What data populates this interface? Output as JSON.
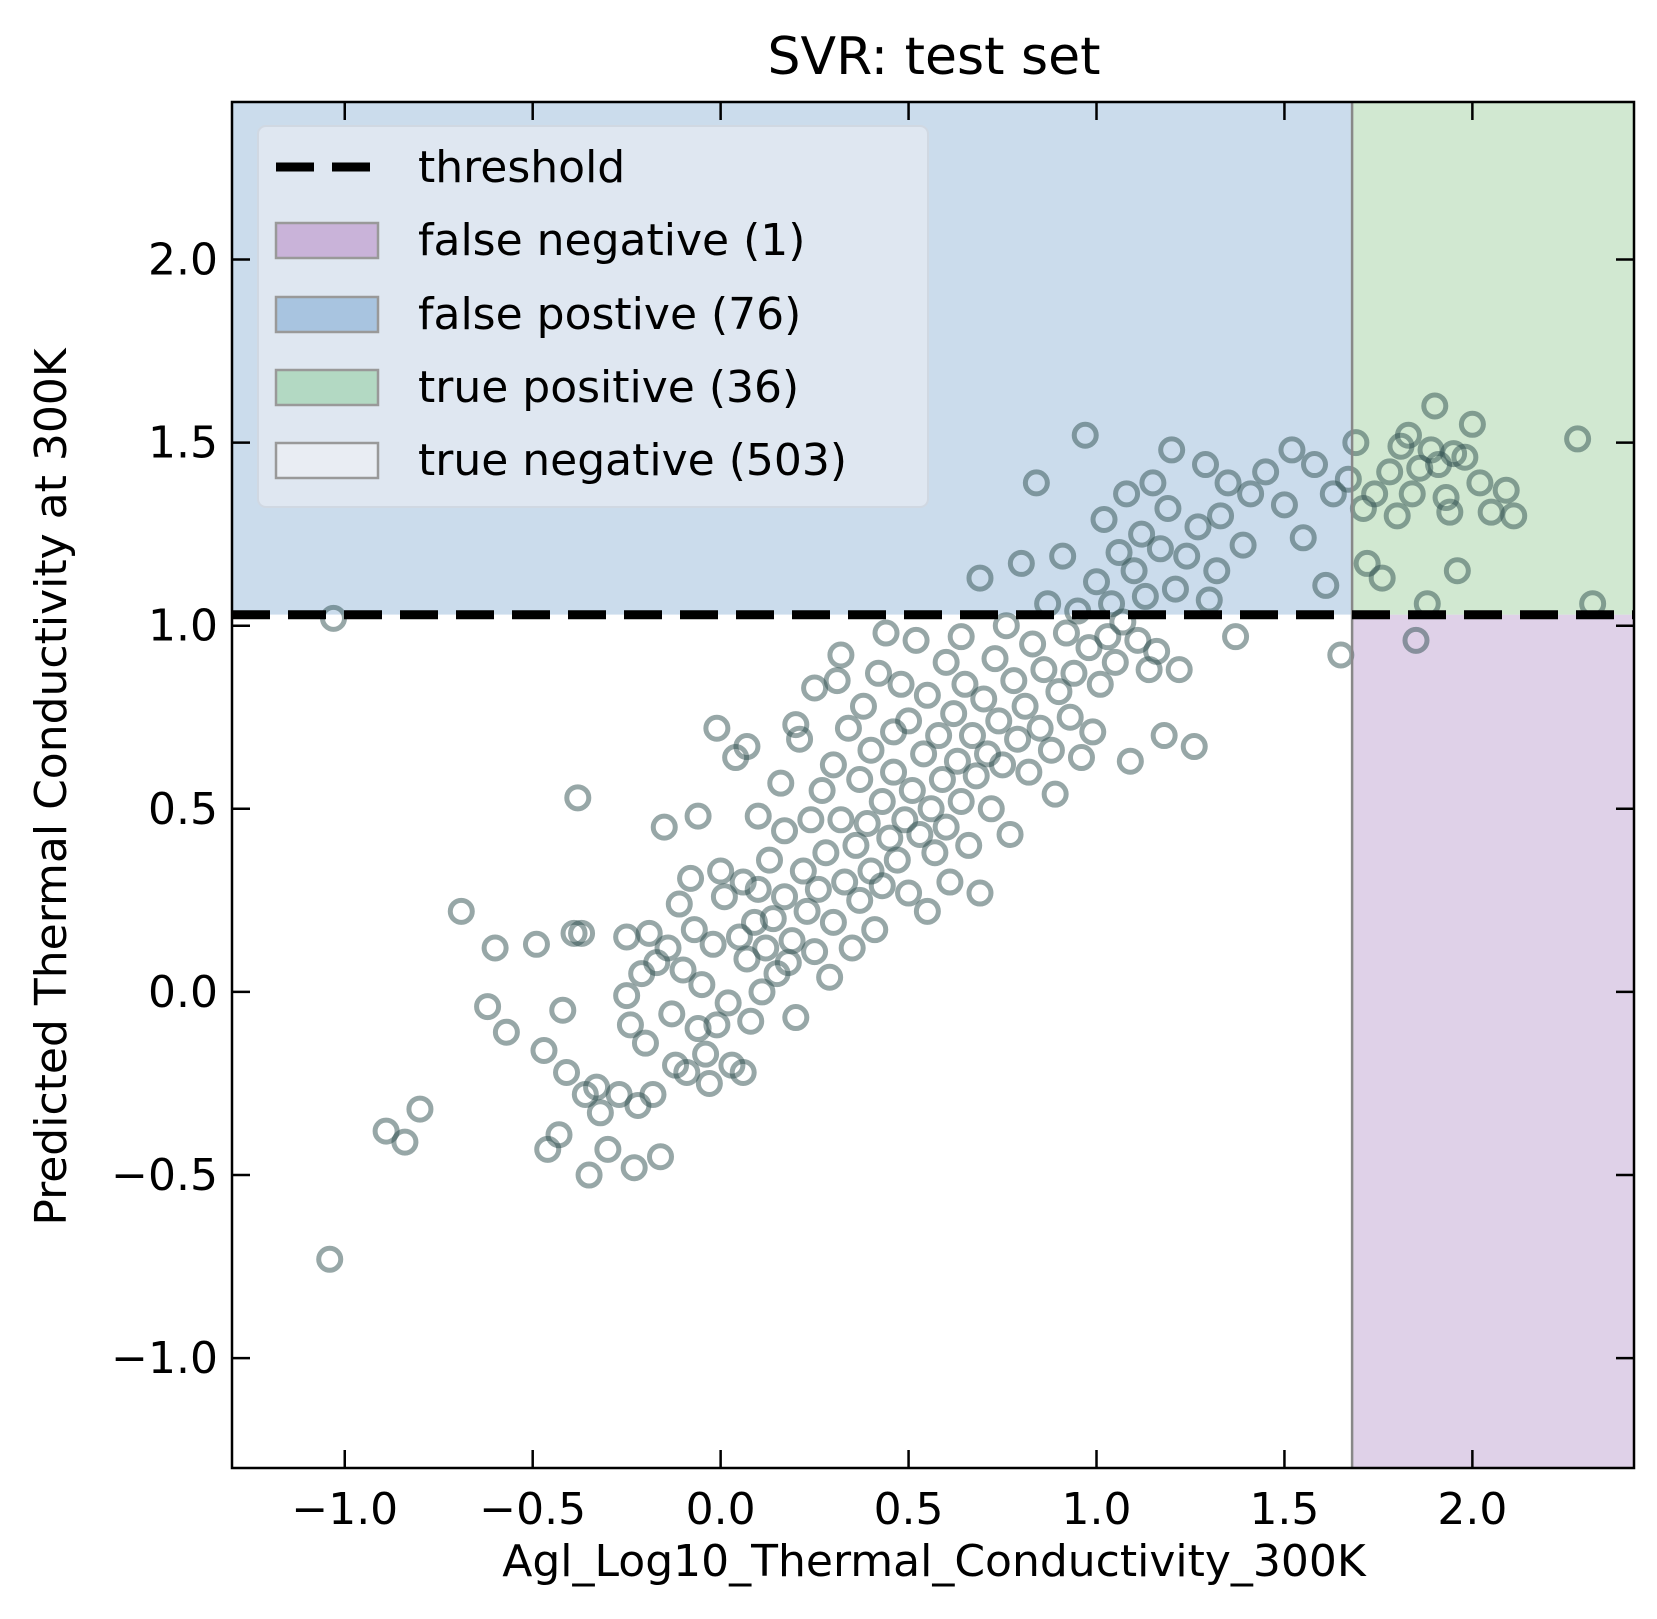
{
  "chart_data": {
    "type": "scatter",
    "title": "SVR: test set",
    "xlabel": "Agl_Log10_Thermal_Conductivity_300K",
    "ylabel": "Predicted Thermal Conductivity at 300K",
    "xlim": [
      -1.3,
      2.43
    ],
    "ylim": [
      -1.3,
      2.43
    ],
    "xticks": [
      -1.0,
      -0.5,
      0.0,
      0.5,
      1.0,
      1.5,
      2.0
    ],
    "yticks": [
      -1.0,
      -0.5,
      0.0,
      0.5,
      1.0,
      1.5,
      2.0
    ],
    "xtick_labels": [
      "−1.0",
      "−0.5",
      "0.0",
      "0.5",
      "1.0",
      "1.5",
      "2.0"
    ],
    "ytick_labels": [
      "−1.0",
      "−0.5",
      "0.0",
      "0.5",
      "1.0",
      "1.5",
      "2.0"
    ],
    "grid": false,
    "legend_position": "top-left",
    "threshold": {
      "x": 1.68,
      "y": 1.03
    },
    "regions": {
      "false_negative": {
        "label": "false negative (1)",
        "color": "#c9b3d9"
      },
      "false_positive": {
        "label": "false postive (76)",
        "color": "#a8c4e0"
      },
      "true_positive": {
        "label": "true positive (36)",
        "color": "#b3d9b3"
      },
      "true_negative": {
        "label": "true negative (503)",
        "color": "#e0e6ee"
      }
    },
    "legend": [
      {
        "label": "threshold",
        "kind": "line",
        "color": "#000000"
      },
      {
        "label": "false negative (1)",
        "kind": "patch",
        "color": "#c9b3d9"
      },
      {
        "label": "false postive (76)",
        "kind": "patch",
        "color": "#a8c4e0"
      },
      {
        "label": "true positive (36)",
        "kind": "patch",
        "color": "#b3d9b3"
      },
      {
        "label": "true negative (503)",
        "kind": "patch",
        "color": "#e0e6ee"
      }
    ],
    "marker_color": "#2f4f4f",
    "points": [
      [
        -1.04,
        -0.73
      ],
      [
        -1.03,
        1.02
      ],
      [
        -0.89,
        -0.38
      ],
      [
        -0.84,
        -0.41
      ],
      [
        -0.8,
        -0.32
      ],
      [
        -0.69,
        0.22
      ],
      [
        -0.62,
        -0.04
      ],
      [
        -0.6,
        0.12
      ],
      [
        -0.57,
        -0.11
      ],
      [
        -0.49,
        0.13
      ],
      [
        -0.47,
        -0.16
      ],
      [
        -0.46,
        -0.43
      ],
      [
        -0.43,
        -0.39
      ],
      [
        -0.42,
        -0.05
      ],
      [
        -0.41,
        -0.22
      ],
      [
        -0.39,
        0.16
      ],
      [
        -0.38,
        0.53
      ],
      [
        -0.37,
        0.16
      ],
      [
        -0.36,
        -0.28
      ],
      [
        -0.35,
        -0.5
      ],
      [
        -0.33,
        -0.26
      ],
      [
        -0.32,
        -0.33
      ],
      [
        -0.3,
        -0.43
      ],
      [
        -0.27,
        -0.28
      ],
      [
        -0.25,
        0.15
      ],
      [
        -0.25,
        -0.01
      ],
      [
        -0.24,
        -0.09
      ],
      [
        -0.23,
        -0.48
      ],
      [
        -0.22,
        -0.31
      ],
      [
        -0.21,
        0.05
      ],
      [
        -0.2,
        -0.14
      ],
      [
        -0.19,
        0.16
      ],
      [
        -0.18,
        -0.28
      ],
      [
        -0.17,
        0.08
      ],
      [
        -0.16,
        -0.45
      ],
      [
        -0.15,
        0.45
      ],
      [
        -0.14,
        0.12
      ],
      [
        -0.13,
        -0.06
      ],
      [
        -0.12,
        -0.2
      ],
      [
        -0.11,
        0.24
      ],
      [
        -0.1,
        0.06
      ],
      [
        -0.09,
        -0.22
      ],
      [
        -0.08,
        0.31
      ],
      [
        -0.07,
        0.17
      ],
      [
        -0.06,
        -0.1
      ],
      [
        -0.06,
        0.48
      ],
      [
        -0.05,
        0.02
      ],
      [
        -0.04,
        -0.17
      ],
      [
        -0.03,
        -0.25
      ],
      [
        -0.02,
        0.13
      ],
      [
        -0.01,
        -0.09
      ],
      [
        -0.01,
        0.72
      ],
      [
        0.0,
        0.33
      ],
      [
        0.01,
        0.26
      ],
      [
        0.02,
        -0.03
      ],
      [
        0.03,
        -0.2
      ],
      [
        0.04,
        0.64
      ],
      [
        0.05,
        0.15
      ],
      [
        0.06,
        0.3
      ],
      [
        0.06,
        -0.22
      ],
      [
        0.07,
        0.09
      ],
      [
        0.07,
        0.67
      ],
      [
        0.08,
        -0.08
      ],
      [
        0.09,
        0.19
      ],
      [
        0.1,
        0.48
      ],
      [
        0.1,
        0.28
      ],
      [
        0.11,
        0.0
      ],
      [
        0.12,
        0.12
      ],
      [
        0.13,
        0.36
      ],
      [
        0.14,
        0.2
      ],
      [
        0.15,
        0.05
      ],
      [
        0.16,
        0.57
      ],
      [
        0.17,
        0.44
      ],
      [
        0.17,
        0.26
      ],
      [
        0.18,
        0.08
      ],
      [
        0.19,
        0.14
      ],
      [
        0.2,
        -0.07
      ],
      [
        0.2,
        0.73
      ],
      [
        0.21,
        0.69
      ],
      [
        0.22,
        0.33
      ],
      [
        0.23,
        0.22
      ],
      [
        0.24,
        0.47
      ],
      [
        0.25,
        0.11
      ],
      [
        0.25,
        0.83
      ],
      [
        0.26,
        0.28
      ],
      [
        0.27,
        0.55
      ],
      [
        0.28,
        0.38
      ],
      [
        0.29,
        0.04
      ],
      [
        0.3,
        0.19
      ],
      [
        0.3,
        0.62
      ],
      [
        0.31,
        0.85
      ],
      [
        0.32,
        0.47
      ],
      [
        0.32,
        0.92
      ],
      [
        0.33,
        0.3
      ],
      [
        0.34,
        0.72
      ],
      [
        0.35,
        0.12
      ],
      [
        0.36,
        0.4
      ],
      [
        0.37,
        0.25
      ],
      [
        0.37,
        0.58
      ],
      [
        0.38,
        0.78
      ],
      [
        0.39,
        0.46
      ],
      [
        0.4,
        0.33
      ],
      [
        0.4,
        0.66
      ],
      [
        0.41,
        0.17
      ],
      [
        0.42,
        0.87
      ],
      [
        0.43,
        0.52
      ],
      [
        0.43,
        0.29
      ],
      [
        0.44,
        0.98
      ],
      [
        0.45,
        0.42
      ],
      [
        0.46,
        0.71
      ],
      [
        0.46,
        0.6
      ],
      [
        0.47,
        0.36
      ],
      [
        0.48,
        0.84
      ],
      [
        0.49,
        0.47
      ],
      [
        0.5,
        0.27
      ],
      [
        0.5,
        0.74
      ],
      [
        0.51,
        0.55
      ],
      [
        0.52,
        0.96
      ],
      [
        0.53,
        0.43
      ],
      [
        0.54,
        0.65
      ],
      [
        0.55,
        0.22
      ],
      [
        0.55,
        0.81
      ],
      [
        0.56,
        0.5
      ],
      [
        0.57,
        0.38
      ],
      [
        0.58,
        0.7
      ],
      [
        0.59,
        0.58
      ],
      [
        0.6,
        0.9
      ],
      [
        0.6,
        0.45
      ],
      [
        0.61,
        0.3
      ],
      [
        0.62,
        0.76
      ],
      [
        0.63,
        0.63
      ],
      [
        0.64,
        0.52
      ],
      [
        0.64,
        0.97
      ],
      [
        0.65,
        0.84
      ],
      [
        0.66,
        0.4
      ],
      [
        0.67,
        0.7
      ],
      [
        0.68,
        0.59
      ],
      [
        0.69,
        0.27
      ],
      [
        0.69,
        1.13
      ],
      [
        0.7,
        0.8
      ],
      [
        0.71,
        0.65
      ],
      [
        0.72,
        0.5
      ],
      [
        0.73,
        0.91
      ],
      [
        0.74,
        0.74
      ],
      [
        0.75,
        0.62
      ],
      [
        0.76,
        1.0
      ],
      [
        0.77,
        0.43
      ],
      [
        0.78,
        0.85
      ],
      [
        0.79,
        0.69
      ],
      [
        0.8,
        1.17
      ],
      [
        0.81,
        0.78
      ],
      [
        0.82,
        0.6
      ],
      [
        0.83,
        0.95
      ],
      [
        0.84,
        1.39
      ],
      [
        0.85,
        0.72
      ],
      [
        0.86,
        0.88
      ],
      [
        0.87,
        1.06
      ],
      [
        0.88,
        0.66
      ],
      [
        0.89,
        0.54
      ],
      [
        0.9,
        0.82
      ],
      [
        0.91,
        1.19
      ],
      [
        0.92,
        0.98
      ],
      [
        0.93,
        0.75
      ],
      [
        0.94,
        0.87
      ],
      [
        0.95,
        1.04
      ],
      [
        0.96,
        0.64
      ],
      [
        0.97,
        1.52
      ],
      [
        0.98,
        0.94
      ],
      [
        0.99,
        0.71
      ],
      [
        1.0,
        1.12
      ],
      [
        1.01,
        0.84
      ],
      [
        1.02,
        1.29
      ],
      [
        1.03,
        0.97
      ],
      [
        1.04,
        1.06
      ],
      [
        1.05,
        0.9
      ],
      [
        1.06,
        1.2
      ],
      [
        1.07,
        1.01
      ],
      [
        1.08,
        1.36
      ],
      [
        1.09,
        0.63
      ],
      [
        1.1,
        1.15
      ],
      [
        1.11,
        0.96
      ],
      [
        1.12,
        1.25
      ],
      [
        1.13,
        1.08
      ],
      [
        1.14,
        0.88
      ],
      [
        1.15,
        1.39
      ],
      [
        1.16,
        0.93
      ],
      [
        1.17,
        1.21
      ],
      [
        1.18,
        0.7
      ],
      [
        1.19,
        1.32
      ],
      [
        1.2,
        1.48
      ],
      [
        1.21,
        1.1
      ],
      [
        1.22,
        0.88
      ],
      [
        1.24,
        1.19
      ],
      [
        1.26,
        0.67
      ],
      [
        1.27,
        1.27
      ],
      [
        1.29,
        1.44
      ],
      [
        1.3,
        1.07
      ],
      [
        1.32,
        1.15
      ],
      [
        1.33,
        1.3
      ],
      [
        1.35,
        1.39
      ],
      [
        1.37,
        0.97
      ],
      [
        1.39,
        1.22
      ],
      [
        1.41,
        1.36
      ],
      [
        1.45,
        1.42
      ],
      [
        1.5,
        1.33
      ],
      [
        1.52,
        1.48
      ],
      [
        1.55,
        1.24
      ],
      [
        1.58,
        1.44
      ],
      [
        1.61,
        1.11
      ],
      [
        1.63,
        1.36
      ],
      [
        1.65,
        0.92
      ],
      [
        1.67,
        1.4
      ],
      [
        1.69,
        1.5
      ],
      [
        1.71,
        1.32
      ],
      [
        1.72,
        1.17
      ],
      [
        1.74,
        1.36
      ],
      [
        1.76,
        1.13
      ],
      [
        1.78,
        1.42
      ],
      [
        1.8,
        1.3
      ],
      [
        1.81,
        1.49
      ],
      [
        1.83,
        1.52
      ],
      [
        1.84,
        1.36
      ],
      [
        1.85,
        0.96
      ],
      [
        1.86,
        1.43
      ],
      [
        1.88,
        1.06
      ],
      [
        1.89,
        1.48
      ],
      [
        1.9,
        1.6
      ],
      [
        1.91,
        1.44
      ],
      [
        1.93,
        1.35
      ],
      [
        1.94,
        1.31
      ],
      [
        1.95,
        1.47
      ],
      [
        1.96,
        1.15
      ],
      [
        1.98,
        1.46
      ],
      [
        2.0,
        1.55
      ],
      [
        2.02,
        1.39
      ],
      [
        2.05,
        1.31
      ],
      [
        2.09,
        1.37
      ],
      [
        2.11,
        1.3
      ],
      [
        2.28,
        1.51
      ],
      [
        2.32,
        1.06
      ]
    ]
  }
}
